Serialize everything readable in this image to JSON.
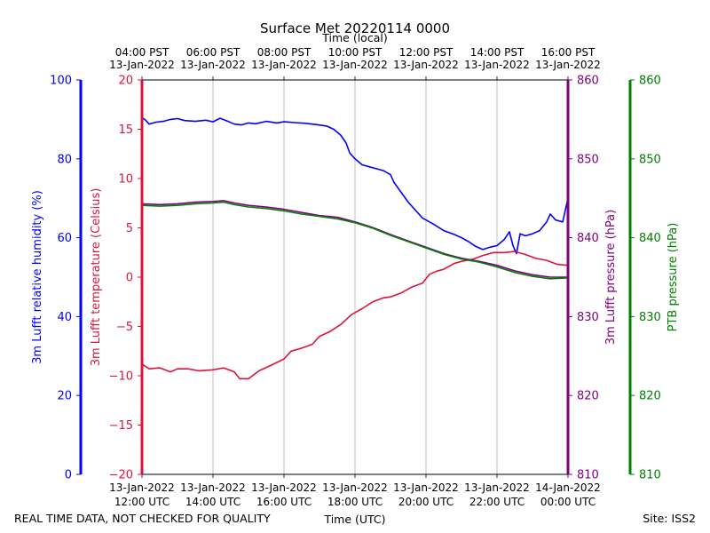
{
  "chart_data": {
    "type": "line",
    "title": "Surface Met 20220114 0000",
    "top_axis": {
      "label": "Time (local)",
      "ticks": [
        {
          "line1": "04:00 PST",
          "line2": "13-Jan-2022"
        },
        {
          "line1": "06:00 PST",
          "line2": "13-Jan-2022"
        },
        {
          "line1": "08:00 PST",
          "line2": "13-Jan-2022"
        },
        {
          "line1": "10:00 PST",
          "line2": "13-Jan-2022"
        },
        {
          "line1": "12:00 PST",
          "line2": "13-Jan-2022"
        },
        {
          "line1": "14:00 PST",
          "line2": "13-Jan-2022"
        },
        {
          "line1": "16:00 PST",
          "line2": "13-Jan-2022"
        }
      ]
    },
    "bottom_axis": {
      "label": "Time (UTC)",
      "ticks": [
        {
          "line1": "13-Jan-2022",
          "line2": "12:00 UTC"
        },
        {
          "line1": "13-Jan-2022",
          "line2": "14:00 UTC"
        },
        {
          "line1": "13-Jan-2022",
          "line2": "16:00 UTC"
        },
        {
          "line1": "13-Jan-2022",
          "line2": "18:00 UTC"
        },
        {
          "line1": "13-Jan-2022",
          "line2": "20:00 UTC"
        },
        {
          "line1": "13-Jan-2022",
          "line2": "22:00 UTC"
        },
        {
          "line1": "14-Jan-2022",
          "line2": "00:00 UTC"
        }
      ]
    },
    "x_range_hours_utc": [
      12,
      24
    ],
    "grid": true,
    "axes": {
      "humidity": {
        "label": "3m Lufft relative humidity (%)",
        "ylim": [
          0,
          100
        ],
        "ticks": [
          "0",
          "20",
          "40",
          "60",
          "80",
          "100"
        ],
        "color": "#0000ff"
      },
      "temperature": {
        "label": "3m Lufft temperature (Celsius)",
        "ylim": [
          -20,
          20
        ],
        "ticks": [
          "−20",
          "−15",
          "−10",
          "−5",
          "0",
          "5",
          "10",
          "15",
          "20"
        ],
        "color": "#dc143c"
      },
      "pressure_lufft": {
        "label": "3m Lufft pressure (hPa)",
        "ylim": [
          810,
          860
        ],
        "ticks": [
          "810",
          "820",
          "830",
          "840",
          "850",
          "860"
        ],
        "color": "#800080"
      },
      "pressure_ptb": {
        "label": "PTB pressure (hPa)",
        "ylim": [
          810,
          860
        ],
        "ticks": [
          "810",
          "820",
          "830",
          "840",
          "850",
          "860"
        ],
        "color": "#008000"
      }
    },
    "series": [
      {
        "name": "3m Lufft relative humidity",
        "axis": "humidity",
        "color": "#0000ff",
        "points": [
          [
            12.0,
            90.5
          ],
          [
            12.1,
            89.8
          ],
          [
            12.2,
            88.8
          ],
          [
            12.4,
            89.3
          ],
          [
            12.6,
            89.5
          ],
          [
            12.8,
            90.0
          ],
          [
            13.0,
            90.2
          ],
          [
            13.2,
            89.7
          ],
          [
            13.5,
            89.5
          ],
          [
            13.8,
            89.8
          ],
          [
            14.0,
            89.4
          ],
          [
            14.2,
            90.3
          ],
          [
            14.4,
            89.6
          ],
          [
            14.6,
            88.8
          ],
          [
            14.8,
            88.6
          ],
          [
            15.0,
            89.1
          ],
          [
            15.2,
            88.9
          ],
          [
            15.5,
            89.5
          ],
          [
            15.8,
            89.1
          ],
          [
            16.0,
            89.4
          ],
          [
            16.3,
            89.2
          ],
          [
            16.6,
            89.0
          ],
          [
            16.9,
            88.7
          ],
          [
            17.2,
            88.3
          ],
          [
            17.4,
            87.5
          ],
          [
            17.6,
            86.0
          ],
          [
            17.75,
            84.0
          ],
          [
            17.85,
            81.5
          ],
          [
            18.0,
            80.0
          ],
          [
            18.2,
            78.5
          ],
          [
            18.4,
            78.0
          ],
          [
            18.6,
            77.5
          ],
          [
            18.8,
            77.0
          ],
          [
            19.0,
            76.0
          ],
          [
            19.1,
            74.0
          ],
          [
            19.3,
            71.5
          ],
          [
            19.5,
            69.0
          ],
          [
            19.7,
            67.0
          ],
          [
            19.9,
            65.0
          ],
          [
            20.2,
            63.5
          ],
          [
            20.5,
            61.8
          ],
          [
            20.8,
            60.8
          ],
          [
            21.0,
            60.0
          ],
          [
            21.2,
            59.0
          ],
          [
            21.4,
            57.8
          ],
          [
            21.6,
            57.0
          ],
          [
            21.8,
            57.6
          ],
          [
            22.0,
            58.0
          ],
          [
            22.2,
            59.5
          ],
          [
            22.35,
            61.5
          ],
          [
            22.45,
            58.0
          ],
          [
            22.55,
            56.0
          ],
          [
            22.65,
            61.0
          ],
          [
            22.8,
            60.5
          ],
          [
            23.0,
            61.0
          ],
          [
            23.2,
            61.8
          ],
          [
            23.4,
            64.0
          ],
          [
            23.5,
            66.0
          ],
          [
            23.65,
            64.5
          ],
          [
            23.85,
            64.0
          ],
          [
            23.95,
            68.0
          ],
          [
            24.0,
            70.0
          ]
        ]
      },
      {
        "name": "3m Lufft temperature",
        "axis": "temperature",
        "color": "#dc143c",
        "points": [
          [
            12.0,
            -8.8
          ],
          [
            12.2,
            -9.3
          ],
          [
            12.5,
            -9.2
          ],
          [
            12.8,
            -9.6
          ],
          [
            13.0,
            -9.3
          ],
          [
            13.3,
            -9.3
          ],
          [
            13.6,
            -9.5
          ],
          [
            14.0,
            -9.4
          ],
          [
            14.3,
            -9.2
          ],
          [
            14.6,
            -9.6
          ],
          [
            14.75,
            -10.3
          ],
          [
            15.0,
            -10.3
          ],
          [
            15.3,
            -9.5
          ],
          [
            15.6,
            -9.0
          ],
          [
            16.0,
            -8.3
          ],
          [
            16.2,
            -7.5
          ],
          [
            16.5,
            -7.2
          ],
          [
            16.8,
            -6.8
          ],
          [
            17.0,
            -6.0
          ],
          [
            17.3,
            -5.5
          ],
          [
            17.6,
            -4.8
          ],
          [
            17.9,
            -3.8
          ],
          [
            18.2,
            -3.2
          ],
          [
            18.5,
            -2.5
          ],
          [
            18.8,
            -2.1
          ],
          [
            19.0,
            -2.0
          ],
          [
            19.3,
            -1.6
          ],
          [
            19.6,
            -1.0
          ],
          [
            19.9,
            -0.6
          ],
          [
            20.1,
            0.3
          ],
          [
            20.3,
            0.6
          ],
          [
            20.5,
            0.8
          ],
          [
            20.8,
            1.4
          ],
          [
            21.0,
            1.6
          ],
          [
            21.3,
            1.8
          ],
          [
            21.6,
            2.2
          ],
          [
            21.9,
            2.5
          ],
          [
            22.2,
            2.5
          ],
          [
            22.5,
            2.6
          ],
          [
            22.8,
            2.3
          ],
          [
            23.1,
            1.9
          ],
          [
            23.4,
            1.7
          ],
          [
            23.7,
            1.3
          ],
          [
            24.0,
            1.2
          ]
        ]
      },
      {
        "name": "3m Lufft pressure",
        "axis": "pressure_lufft",
        "color": "#800080",
        "points": [
          [
            12.0,
            844.3
          ],
          [
            12.5,
            844.2
          ],
          [
            13.0,
            844.3
          ],
          [
            13.5,
            844.5
          ],
          [
            14.0,
            844.6
          ],
          [
            14.3,
            844.7
          ],
          [
            14.6,
            844.4
          ],
          [
            15.0,
            844.1
          ],
          [
            15.5,
            843.9
          ],
          [
            16.0,
            843.6
          ],
          [
            16.5,
            843.2
          ],
          [
            17.0,
            842.8
          ],
          [
            17.5,
            842.6
          ],
          [
            18.0,
            842.0
          ],
          [
            18.5,
            841.3
          ],
          [
            19.0,
            840.4
          ],
          [
            19.5,
            839.6
          ],
          [
            20.0,
            838.8
          ],
          [
            20.5,
            838.0
          ],
          [
            21.0,
            837.4
          ],
          [
            21.5,
            837.0
          ],
          [
            22.0,
            836.5
          ],
          [
            22.5,
            835.8
          ],
          [
            23.0,
            835.3
          ],
          [
            23.5,
            835.0
          ],
          [
            24.0,
            835.0
          ]
        ]
      },
      {
        "name": "PTB pressure",
        "axis": "pressure_ptb",
        "color": "#008000",
        "points": [
          [
            12.0,
            844.1
          ],
          [
            12.5,
            844.0
          ],
          [
            13.0,
            844.1
          ],
          [
            13.5,
            844.3
          ],
          [
            14.0,
            844.4
          ],
          [
            14.3,
            844.5
          ],
          [
            14.6,
            844.2
          ],
          [
            15.0,
            843.9
          ],
          [
            15.5,
            843.7
          ],
          [
            16.0,
            843.4
          ],
          [
            16.5,
            843.0
          ],
          [
            17.0,
            842.7
          ],
          [
            17.5,
            842.4
          ],
          [
            18.0,
            841.9
          ],
          [
            18.5,
            841.2
          ],
          [
            19.0,
            840.3
          ],
          [
            19.5,
            839.5
          ],
          [
            20.0,
            838.7
          ],
          [
            20.5,
            837.9
          ],
          [
            21.0,
            837.3
          ],
          [
            21.5,
            836.9
          ],
          [
            22.0,
            836.3
          ],
          [
            22.5,
            835.6
          ],
          [
            23.0,
            835.1
          ],
          [
            23.5,
            834.8
          ],
          [
            24.0,
            834.9
          ]
        ]
      }
    ]
  },
  "footer": {
    "left_note": "REAL TIME DATA, NOT CHECKED FOR QUALITY",
    "site": "Site: ISS2"
  }
}
